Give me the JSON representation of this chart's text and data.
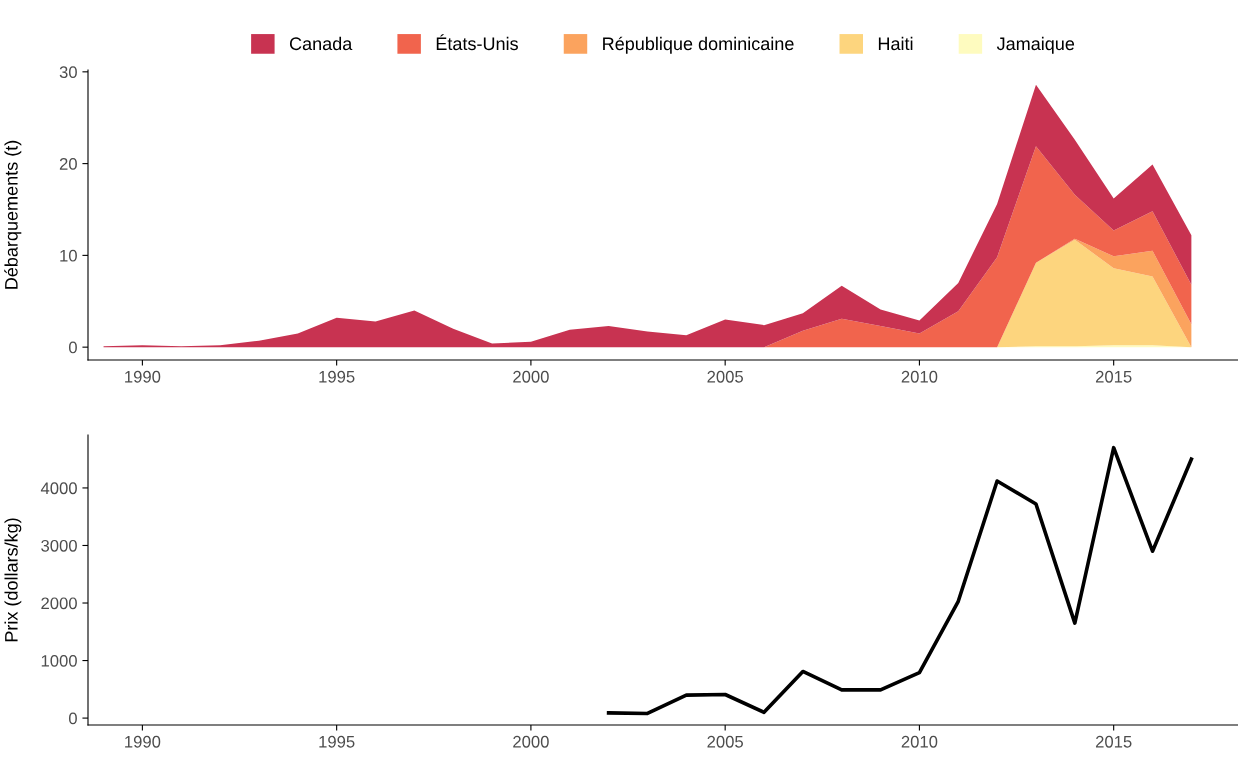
{
  "chart_data": [
    {
      "type": "area",
      "stacked": true,
      "ylabel": "Débarquements (t)",
      "legend": "top",
      "x": [
        1989,
        1990,
        1991,
        1992,
        1993,
        1994,
        1995,
        1996,
        1997,
        1998,
        1999,
        2000,
        2001,
        2002,
        2003,
        2004,
        2005,
        2006,
        2007,
        2008,
        2009,
        2010,
        2011,
        2012,
        2013,
        2014,
        2015,
        2016,
        2017
      ],
      "xlim": [
        1988.6,
        2018.2
      ],
      "xticks": [
        1990,
        1995,
        2000,
        2005,
        2010,
        2015
      ],
      "ylim": [
        -1.4,
        30.2
      ],
      "yticks": [
        0,
        10,
        20,
        30
      ],
      "grid": false,
      "series": [
        {
          "name": "Jamaique",
          "color": "#fefbbf",
          "values": [
            null,
            null,
            null,
            null,
            null,
            null,
            null,
            null,
            null,
            null,
            null,
            null,
            null,
            null,
            null,
            null,
            null,
            null,
            null,
            null,
            null,
            null,
            null,
            0,
            0.1,
            0.1,
            0.2,
            0.2,
            0
          ]
        },
        {
          "name": "Haiti",
          "color": "#fdd57e",
          "values": [
            null,
            null,
            null,
            null,
            null,
            null,
            null,
            null,
            null,
            null,
            null,
            null,
            null,
            null,
            null,
            null,
            null,
            null,
            null,
            null,
            null,
            null,
            null,
            0,
            9.1,
            11.6,
            8.4,
            7.5,
            0
          ]
        },
        {
          "name": "République dominicaine",
          "color": "#fba35e",
          "values": [
            null,
            null,
            null,
            null,
            null,
            null,
            null,
            null,
            null,
            null,
            null,
            null,
            null,
            null,
            null,
            null,
            null,
            null,
            null,
            null,
            null,
            null,
            null,
            null,
            0,
            0.1,
            1.3,
            2.8,
            2.5
          ]
        },
        {
          "name": "États-Unis",
          "color": "#f1644d",
          "values": [
            null,
            null,
            null,
            null,
            null,
            null,
            null,
            null,
            null,
            null,
            null,
            null,
            null,
            null,
            null,
            null,
            null,
            0,
            1.8,
            3.1,
            2.3,
            1.5,
            3.9,
            9.8,
            12.7,
            4.8,
            2.8,
            4.3,
            4.3
          ]
        },
        {
          "name": "Canada",
          "color": "#c83351",
          "values": [
            0.1,
            0.2,
            0.1,
            0.2,
            0.7,
            1.5,
            3.2,
            2.8,
            4.0,
            2.0,
            0.4,
            0.6,
            1.9,
            2.3,
            1.7,
            1.3,
            3.0,
            2.4,
            1.9,
            3.6,
            1.8,
            1.4,
            3.1,
            5.8,
            6.7,
            6.0,
            3.5,
            5.1,
            5.4
          ]
        }
      ]
    },
    {
      "type": "line",
      "ylabel": "Prix (dollars/kg)",
      "legend": false,
      "grid": false,
      "ylim": [
        -120,
        4920
      ],
      "x": [
        2002,
        2003,
        2004,
        2005,
        2006,
        2007,
        2008,
        2009,
        2010,
        2011,
        2012,
        2013,
        2014,
        2015,
        2016,
        2017
      ],
      "xlim": [
        1988.6,
        2018.2
      ],
      "xticks": [
        1990,
        1995,
        2000,
        2005,
        2010,
        2015
      ],
      "yticks": [
        0,
        1000,
        2000,
        3000,
        4000
      ],
      "series": [
        {
          "color": "#000000",
          "values": [
            90,
            80,
            400,
            410,
            100,
            810,
            490,
            490,
            790,
            2030,
            4120,
            3720,
            1650,
            4700,
            2900,
            4500
          ]
        }
      ]
    }
  ]
}
